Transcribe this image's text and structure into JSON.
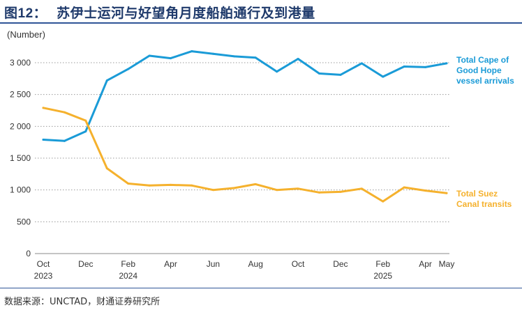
{
  "header": {
    "figure_no": "图12：",
    "title": "苏伊士运河与好望角月度船舶通行及到港量"
  },
  "source": "数据来源：UNCTAD，财通证券研究所",
  "chart_data": {
    "type": "line",
    "ylabel": "(Number)",
    "ylim": [
      0,
      3000
    ],
    "yticks": [
      {
        "value": 0,
        "label": "0"
      },
      {
        "value": 500,
        "label": "500"
      },
      {
        "value": 1000,
        "label": "1 000"
      },
      {
        "value": 1500,
        "label": "1 500"
      },
      {
        "value": 2000,
        "label": "2 000"
      },
      {
        "value": 2500,
        "label": "2 500"
      },
      {
        "value": 3000,
        "label": "3 000"
      }
    ],
    "x": [
      "Oct 2023",
      "Nov 2023",
      "Dec 2023",
      "Jan 2024",
      "Feb 2024",
      "Mar 2024",
      "Apr 2024",
      "May 2024",
      "Jun 2024",
      "Jul 2024",
      "Aug 2024",
      "Sep 2024",
      "Oct 2024",
      "Nov 2024",
      "Dec 2024",
      "Jan 2025",
      "Feb 2025",
      "Mar 2025",
      "Apr 2025",
      "May 2025"
    ],
    "xticks": [
      {
        "index": 0,
        "label": "Oct",
        "year": "2023"
      },
      {
        "index": 2,
        "label": "Dec",
        "year": ""
      },
      {
        "index": 4,
        "label": "Feb",
        "year": "2024"
      },
      {
        "index": 6,
        "label": "Apr",
        "year": ""
      },
      {
        "index": 8,
        "label": "Jun",
        "year": ""
      },
      {
        "index": 10,
        "label": "Aug",
        "year": ""
      },
      {
        "index": 12,
        "label": "Oct",
        "year": ""
      },
      {
        "index": 14,
        "label": "Dec",
        "year": ""
      },
      {
        "index": 16,
        "label": "Feb",
        "year": "2025"
      },
      {
        "index": 18,
        "label": "Apr",
        "year": ""
      },
      {
        "index": 19,
        "label": "May",
        "year": ""
      }
    ],
    "series": [
      {
        "name": "Total Cape of Good Hope vessel arrivals",
        "legend_lines": [
          "Total Cape of",
          "Good Hope",
          "vessel arrivals"
        ],
        "color": "#1a9bd7",
        "values": [
          1790,
          1770,
          1920,
          2720,
          2900,
          3110,
          3070,
          3180,
          3140,
          3100,
          3080,
          2860,
          3060,
          2830,
          2810,
          2990,
          2780,
          2940,
          2930,
          2990
        ]
      },
      {
        "name": "Total Suez Canal transits",
        "legend_lines": [
          "Total Suez",
          "Canal transits"
        ],
        "color": "#f5b12d",
        "values": [
          2290,
          2220,
          2090,
          1340,
          1100,
          1070,
          1080,
          1070,
          1000,
          1030,
          1090,
          1000,
          1020,
          960,
          970,
          1020,
          820,
          1040,
          990,
          950
        ]
      }
    ]
  }
}
